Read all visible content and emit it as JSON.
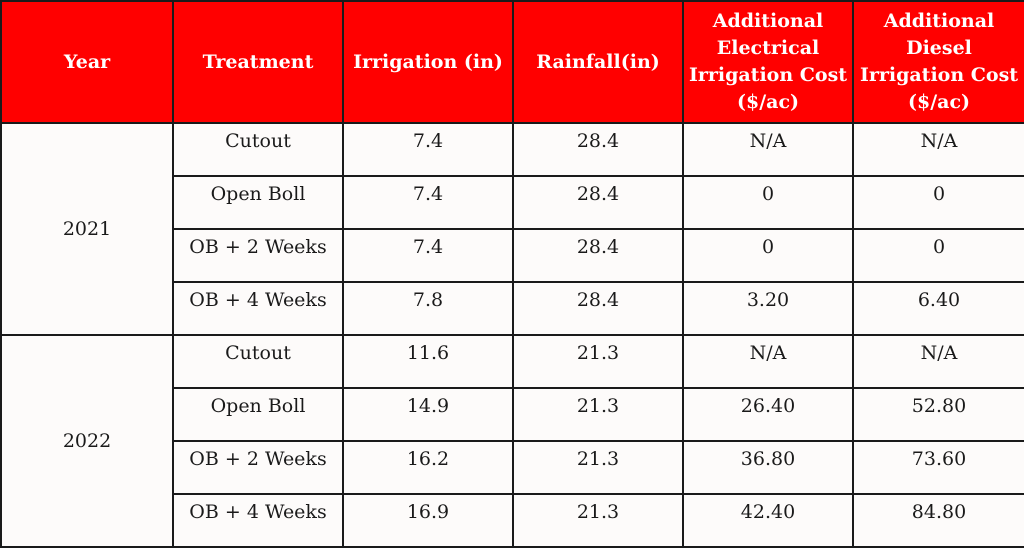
{
  "table": {
    "headers": [
      "Year",
      "Treatment",
      "Irrigation (in)",
      "Rainfall(in)",
      "Additional Electrical Irrigation Cost ($/ac)",
      "Additional Diesel Irrigation Cost ($/ac)"
    ],
    "groups": [
      {
        "year": "2021",
        "rows": [
          [
            "Cutout",
            "7.4",
            "28.4",
            "N/A",
            "N/A"
          ],
          [
            "Open Boll",
            "7.4",
            "28.4",
            "0",
            "0"
          ],
          [
            "OB + 2 Weeks",
            "7.4",
            "28.4",
            "0",
            "0"
          ],
          [
            "OB + 4 Weeks",
            "7.8",
            "28.4",
            "3.20",
            "6.40"
          ]
        ]
      },
      {
        "year": "2022",
        "rows": [
          [
            "Cutout",
            "11.6",
            "21.3",
            "N/A",
            "N/A"
          ],
          [
            "Open Boll",
            "14.9",
            "21.3",
            "26.40",
            "52.80"
          ],
          [
            "OB + 2 Weeks",
            "16.2",
            "21.3",
            "36.80",
            "73.60"
          ],
          [
            "OB + 4 Weeks",
            "16.9",
            "21.3",
            "42.40",
            "84.80"
          ]
        ]
      }
    ]
  },
  "colors": {
    "header_bg": "#ff0000",
    "header_text": "#ffffff",
    "border": "#1a1a1a",
    "cell_bg": "#fdfbfa"
  }
}
